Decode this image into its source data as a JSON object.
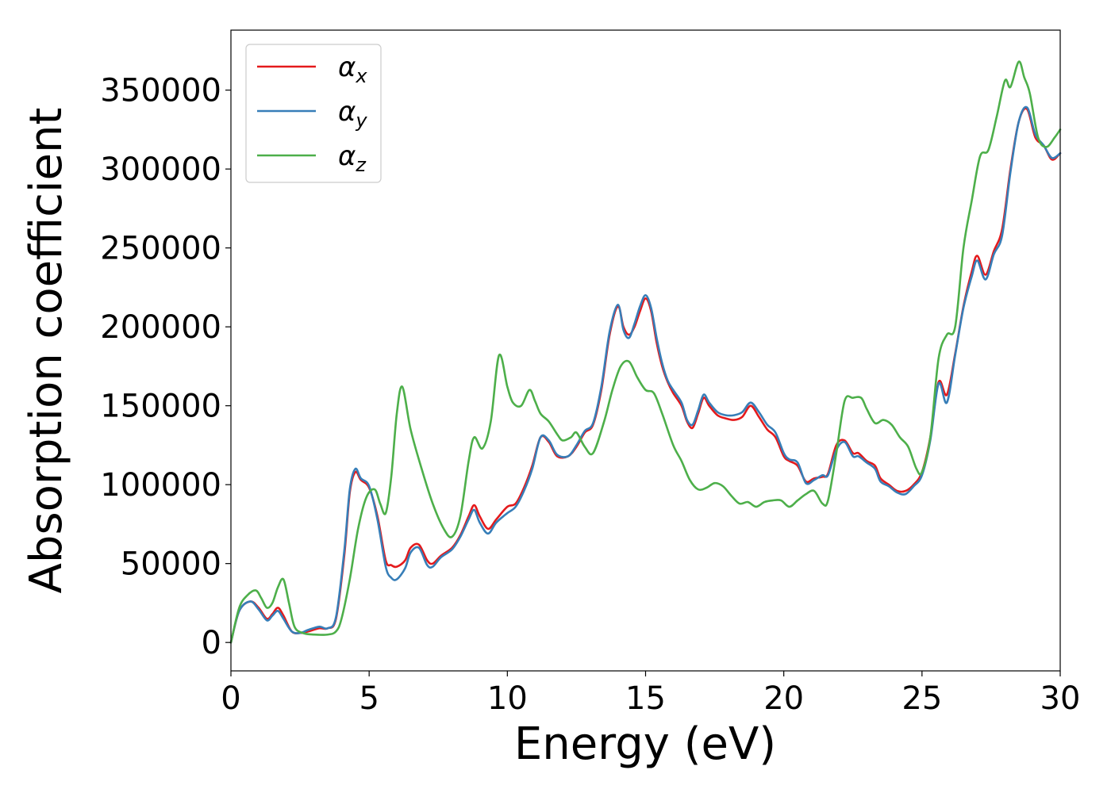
{
  "chart_data": {
    "type": "line",
    "title": "",
    "xlabel": "Energy (eV)",
    "ylabel": "Absorption coefficient",
    "xlim": [
      0,
      30
    ],
    "ylim": [
      -18000,
      388000
    ],
    "xticks": [
      0,
      5,
      10,
      15,
      20,
      25,
      30
    ],
    "yticks": [
      0,
      50000,
      100000,
      150000,
      200000,
      250000,
      300000,
      350000
    ],
    "grid": false,
    "legend_position": "top-left",
    "series": [
      {
        "name": "αx",
        "legend_base": "α",
        "legend_sub": "x",
        "color": "#e41a1c",
        "x": [
          0,
          0.3,
          0.7,
          1.0,
          1.3,
          1.5,
          1.7,
          1.9,
          2.2,
          2.5,
          2.8,
          3.2,
          3.5,
          3.8,
          4.1,
          4.3,
          4.5,
          4.7,
          5.0,
          5.3,
          5.6,
          5.8,
          6.0,
          6.3,
          6.5,
          6.8,
          7.1,
          7.3,
          7.6,
          8.0,
          8.3,
          8.6,
          8.8,
          9.0,
          9.3,
          9.6,
          10.0,
          10.3,
          10.6,
          10.9,
          11.2,
          11.5,
          11.8,
          12.2,
          12.5,
          12.8,
          13.1,
          13.4,
          13.7,
          14.0,
          14.2,
          14.4,
          14.6,
          14.8,
          15.0,
          15.2,
          15.4,
          15.6,
          15.8,
          16.0,
          16.3,
          16.5,
          16.7,
          16.9,
          17.1,
          17.3,
          17.6,
          17.9,
          18.2,
          18.5,
          18.8,
          19.1,
          19.4,
          19.7,
          20.0,
          20.2,
          20.5,
          20.8,
          21.1,
          21.4,
          21.6,
          21.9,
          22.2,
          22.5,
          22.7,
          23.0,
          23.3,
          23.5,
          23.8,
          24.1,
          24.4,
          24.7,
          25.0,
          25.3,
          25.6,
          25.9,
          26.2,
          26.5,
          26.8,
          27.0,
          27.3,
          27.6,
          27.9,
          28.2,
          28.5,
          28.8,
          29.1,
          29.4,
          29.7,
          30.0
        ],
        "y": [
          0,
          20000,
          26000,
          22000,
          15000,
          18000,
          22000,
          17000,
          7000,
          6000,
          7000,
          9000,
          9000,
          15000,
          55000,
          95000,
          108000,
          103000,
          98000,
          80000,
          52000,
          49000,
          48000,
          52000,
          60000,
          62000,
          52000,
          50000,
          55000,
          60000,
          68000,
          80000,
          87000,
          80000,
          72000,
          78000,
          86000,
          88000,
          98000,
          112000,
          130000,
          127000,
          118000,
          118000,
          124000,
          133000,
          138000,
          160000,
          195000,
          213000,
          200000,
          195000,
          200000,
          210000,
          218000,
          210000,
          190000,
          175000,
          165000,
          158000,
          150000,
          140000,
          136000,
          145000,
          155000,
          150000,
          144000,
          142000,
          141000,
          143000,
          150000,
          143000,
          135000,
          130000,
          118000,
          115000,
          112000,
          102000,
          104000,
          105000,
          107000,
          125000,
          128000,
          120000,
          120000,
          115000,
          112000,
          104000,
          100000,
          96000,
          96000,
          100000,
          108000,
          130000,
          165000,
          157000,
          183000,
          213000,
          235000,
          245000,
          233000,
          248000,
          262000,
          300000,
          330000,
          338000,
          320000,
          315000,
          306000,
          310000
        ]
      },
      {
        "name": "αy",
        "legend_base": "α",
        "legend_sub": "y",
        "color": "#377eb8",
        "x": [
          0,
          0.3,
          0.7,
          1.0,
          1.3,
          1.5,
          1.7,
          1.9,
          2.2,
          2.5,
          2.8,
          3.2,
          3.5,
          3.8,
          4.1,
          4.3,
          4.5,
          4.7,
          5.0,
          5.3,
          5.6,
          5.8,
          6.0,
          6.3,
          6.5,
          6.8,
          7.1,
          7.3,
          7.6,
          8.0,
          8.3,
          8.6,
          8.8,
          9.0,
          9.3,
          9.6,
          10.0,
          10.3,
          10.6,
          10.9,
          11.2,
          11.5,
          11.8,
          12.2,
          12.5,
          12.8,
          13.1,
          13.4,
          13.7,
          14.0,
          14.2,
          14.4,
          14.6,
          14.8,
          15.0,
          15.2,
          15.4,
          15.6,
          15.8,
          16.0,
          16.3,
          16.5,
          16.7,
          16.9,
          17.1,
          17.3,
          17.6,
          17.9,
          18.2,
          18.5,
          18.8,
          19.1,
          19.4,
          19.7,
          20.0,
          20.2,
          20.5,
          20.8,
          21.1,
          21.4,
          21.6,
          21.9,
          22.2,
          22.5,
          22.7,
          23.0,
          23.3,
          23.5,
          23.8,
          24.1,
          24.4,
          24.7,
          25.0,
          25.3,
          25.6,
          25.9,
          26.2,
          26.5,
          26.8,
          27.0,
          27.3,
          27.6,
          27.9,
          28.2,
          28.5,
          28.8,
          29.1,
          29.4,
          29.7,
          30.0
        ],
        "y": [
          0,
          20000,
          26000,
          21000,
          14000,
          17000,
          20000,
          15000,
          7000,
          6000,
          8000,
          10000,
          9000,
          16000,
          58000,
          97000,
          110000,
          104000,
          99000,
          78000,
          48000,
          41000,
          40000,
          47000,
          57000,
          60000,
          49000,
          48000,
          54000,
          59000,
          67000,
          78000,
          84000,
          76000,
          69000,
          76000,
          82000,
          86000,
          96000,
          110000,
          130000,
          128000,
          119000,
          118000,
          125000,
          134000,
          139000,
          162000,
          197000,
          214000,
          198000,
          193000,
          202000,
          213000,
          220000,
          212000,
          193000,
          177000,
          166000,
          160000,
          152000,
          141000,
          138000,
          147000,
          157000,
          152000,
          146000,
          144000,
          144000,
          146000,
          152000,
          146000,
          138000,
          133000,
          120000,
          116000,
          114000,
          101000,
          103000,
          106000,
          106000,
          122000,
          127000,
          118000,
          118000,
          114000,
          110000,
          102000,
          99000,
          95000,
          94000,
          99000,
          106000,
          128000,
          164000,
          152000,
          182000,
          212000,
          232000,
          242000,
          230000,
          246000,
          258000,
          298000,
          330000,
          339000,
          322000,
          315000,
          307000,
          310000
        ]
      },
      {
        "name": "αz",
        "legend_base": "α",
        "legend_sub": "z",
        "color": "#4daf4a",
        "x": [
          0,
          0.3,
          0.6,
          0.9,
          1.1,
          1.3,
          1.5,
          1.7,
          1.9,
          2.1,
          2.3,
          2.6,
          3.0,
          3.5,
          3.8,
          4.0,
          4.3,
          4.6,
          4.9,
          5.2,
          5.4,
          5.6,
          5.8,
          6.0,
          6.2,
          6.5,
          6.9,
          7.3,
          7.7,
          8.0,
          8.3,
          8.6,
          8.8,
          9.1,
          9.4,
          9.7,
          10.0,
          10.2,
          10.5,
          10.8,
          11.0,
          11.2,
          11.5,
          11.8,
          12.0,
          12.3,
          12.5,
          12.8,
          13.1,
          13.5,
          13.8,
          14.1,
          14.4,
          14.7,
          15.0,
          15.3,
          15.6,
          16.0,
          16.3,
          16.6,
          16.9,
          17.2,
          17.5,
          17.8,
          18.1,
          18.4,
          18.7,
          19.0,
          19.3,
          19.6,
          19.9,
          20.2,
          20.5,
          20.8,
          21.1,
          21.4,
          21.6,
          21.9,
          22.2,
          22.5,
          22.8,
          23.0,
          23.3,
          23.6,
          23.9,
          24.2,
          24.5,
          24.8,
          25.0,
          25.3,
          25.6,
          25.9,
          26.2,
          26.5,
          26.8,
          27.1,
          27.4,
          27.7,
          28.0,
          28.2,
          28.5,
          28.7,
          28.9,
          29.2,
          29.5,
          29.8,
          30.0
        ],
        "y": [
          0,
          22000,
          30000,
          33000,
          28000,
          22000,
          25000,
          35000,
          40000,
          25000,
          10000,
          6000,
          5000,
          5000,
          7000,
          15000,
          40000,
          72000,
          92000,
          97000,
          88000,
          82000,
          105000,
          145000,
          162000,
          135000,
          110000,
          88000,
          72000,
          67000,
          80000,
          115000,
          130000,
          123000,
          140000,
          182000,
          162000,
          152000,
          150000,
          160000,
          153000,
          145000,
          140000,
          132000,
          128000,
          130000,
          133000,
          124000,
          120000,
          140000,
          160000,
          175000,
          178000,
          168000,
          160000,
          158000,
          145000,
          125000,
          115000,
          103000,
          97000,
          98000,
          101000,
          99000,
          93000,
          88000,
          89000,
          86000,
          89000,
          90000,
          90000,
          86000,
          90000,
          94000,
          96000,
          88000,
          90000,
          120000,
          153000,
          155000,
          155000,
          148000,
          139000,
          141000,
          138000,
          130000,
          124000,
          110000,
          108000,
          130000,
          180000,
          195000,
          200000,
          250000,
          280000,
          308000,
          312000,
          333000,
          356000,
          352000,
          368000,
          358000,
          348000,
          320000,
          314000,
          320000,
          325000
        ]
      }
    ]
  }
}
